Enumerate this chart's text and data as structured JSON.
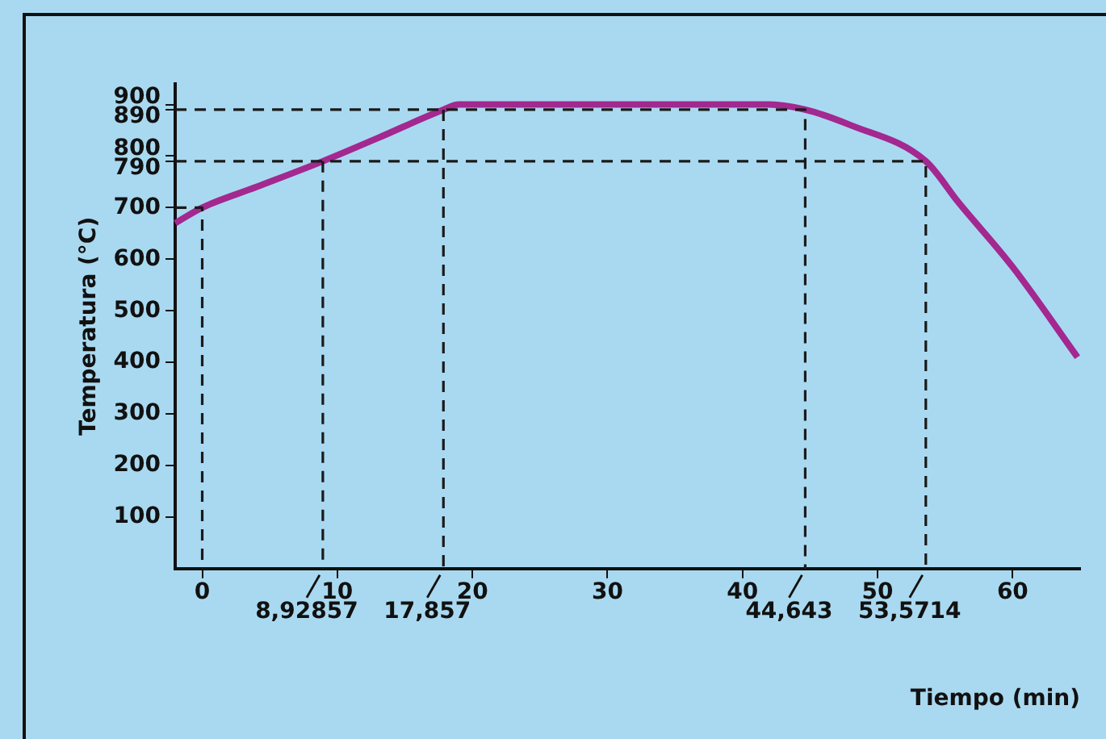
{
  "chart_data": {
    "type": "line",
    "xlabel": "Tiempo (min)",
    "ylabel": "Temperatura (°C)",
    "xlim": [
      -2,
      65
    ],
    "ylim": [
      0,
      940
    ],
    "xticks": [
      0,
      10,
      20,
      30,
      40,
      50,
      60
    ],
    "annotations": [
      {
        "text": "8,92857",
        "x": 8.92857,
        "y": 0
      },
      {
        "text": "17,857",
        "x": 17.857,
        "y": 0
      },
      {
        "text": "44,643",
        "x": 44.643,
        "y": 0
      },
      {
        "text": "53,5714",
        "x": 53.5714,
        "y": 0
      }
    ],
    "yticks": [
      100,
      200,
      300,
      400,
      500,
      600,
      700,
      790,
      800,
      890,
      900
    ],
    "grid": false,
    "legend": false,
    "marker": "none",
    "line_style": "solid",
    "series": [
      {
        "color": "#a3288f",
        "x": [
          -2,
          0,
          4,
          8.92857,
          13,
          17.857,
          19,
          30,
          40,
          42,
          44.643,
          48,
          53.5714,
          56,
          60,
          64.8
        ],
        "values": [
          670,
          700,
          740,
          790,
          835,
          890,
          900,
          900,
          900,
          900,
          890,
          860,
          790,
          710,
          585,
          410
        ]
      },
      {
        "type": "line",
        "line_style": "dashed",
        "color": "#1a1a1a",
        "x": [
          -2,
          44.643,
          44.643
        ],
        "values": [
          890,
          890,
          0
        ]
      },
      {
        "type": "line",
        "line_style": "dashed",
        "color": "#1a1a1a",
        "x": [
          17.857,
          17.857
        ],
        "values": [
          890,
          0
        ]
      },
      {
        "type": "line",
        "line_style": "dashed",
        "color": "#1a1a1a",
        "x": [
          -2,
          53.5714,
          53.5714
        ],
        "values": [
          790,
          790,
          0
        ]
      },
      {
        "type": "line",
        "line_style": "dashed",
        "color": "#1a1a1a",
        "x": [
          8.92857,
          8.92857
        ],
        "values": [
          790,
          0
        ]
      },
      {
        "type": "line",
        "line_style": "dashed",
        "color": "#1a1a1a",
        "x": [
          -2,
          0,
          0
        ],
        "values": [
          700,
          700,
          0
        ]
      }
    ]
  }
}
